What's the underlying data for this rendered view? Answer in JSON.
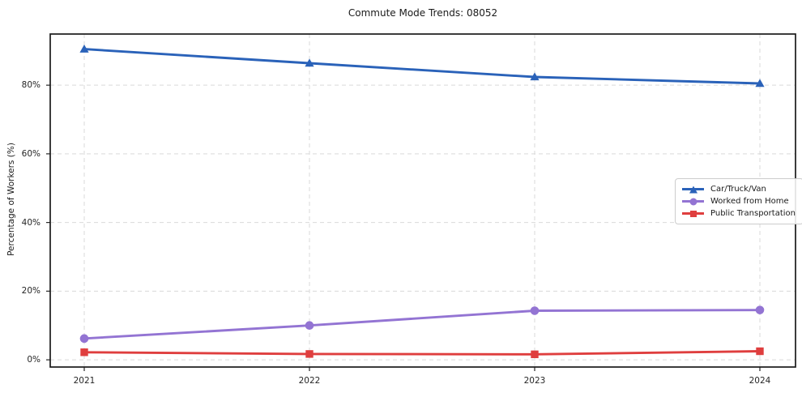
{
  "chart_data": {
    "type": "line",
    "title": "Commute Mode Trends: 08052",
    "xlabel": "",
    "ylabel": "Percentage of Workers (%)",
    "x": [
      2021,
      2022,
      2023,
      2024
    ],
    "xtick_labels": [
      "2021",
      "2022",
      "2023",
      "2024"
    ],
    "yticks": [
      0,
      20,
      40,
      60,
      80
    ],
    "ytick_labels": [
      "0%",
      "20%",
      "40%",
      "60%",
      "80%"
    ],
    "ylim": [
      -2.1,
      94.9
    ],
    "grid": true,
    "grid_style": "dashed",
    "legend_position": "center right",
    "series": [
      {
        "name": "Car/Truck/Van",
        "marker": "triangle",
        "color": "#2a62b9",
        "values": [
          90.5,
          86.4,
          82.4,
          80.5
        ]
      },
      {
        "name": "Worked from Home",
        "marker": "circle",
        "color": "#9374d3",
        "values": [
          6.2,
          10.0,
          14.3,
          14.5
        ]
      },
      {
        "name": "Public Transportation",
        "marker": "square",
        "color": "#df3e3e",
        "values": [
          2.2,
          1.7,
          1.6,
          2.5
        ]
      }
    ],
    "colors": {
      "spine": "#1a1a1a",
      "gridline": "#d9d9d9",
      "tick": "#262626",
      "text": "#1a1a1a"
    }
  }
}
